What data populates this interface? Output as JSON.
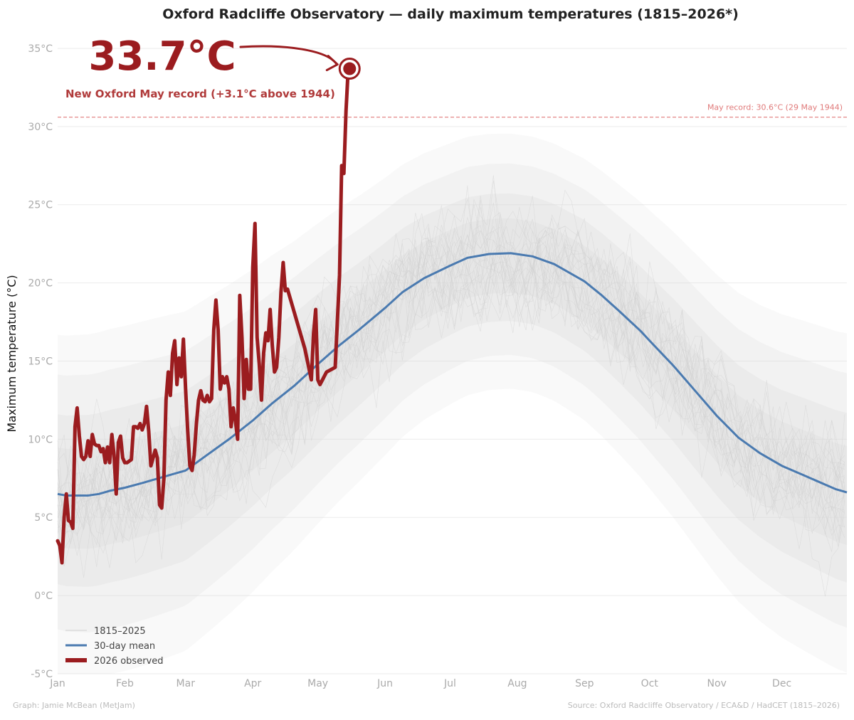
{
  "chart_data": {
    "type": "line",
    "title": "Oxford Radcliffe Observatory — daily maximum temperatures (1815–2026*)",
    "ylabel": "Maximum temperature (°C)",
    "xlabel": "",
    "ylim": [
      -5,
      35
    ],
    "xlim_day_of_year": [
      1,
      365
    ],
    "grid": "horizontal",
    "y_ticks": [
      {
        "value": -5,
        "label": "-5°C"
      },
      {
        "value": 0,
        "label": "0°C"
      },
      {
        "value": 5,
        "label": "5°C"
      },
      {
        "value": 10,
        "label": "10°C"
      },
      {
        "value": 15,
        "label": "15°C"
      },
      {
        "value": 20,
        "label": "20°C"
      },
      {
        "value": 25,
        "label": "25°C"
      },
      {
        "value": 30,
        "label": "30°C"
      },
      {
        "value": 35,
        "label": "35°C"
      }
    ],
    "x_ticks": [
      {
        "day": 1,
        "label": "Jan"
      },
      {
        "day": 32,
        "label": "Feb"
      },
      {
        "day": 60,
        "label": "Mar"
      },
      {
        "day": 91,
        "label": "Apr"
      },
      {
        "day": 121,
        "label": "May"
      },
      {
        "day": 152,
        "label": "Jun"
      },
      {
        "day": 182,
        "label": "Jul"
      },
      {
        "day": 213,
        "label": "Aug"
      },
      {
        "day": 244,
        "label": "Sep"
      },
      {
        "day": 274,
        "label": "Oct"
      },
      {
        "day": 305,
        "label": "Nov"
      },
      {
        "day": 335,
        "label": "Dec"
      }
    ],
    "legend": {
      "placement": "bottom-left",
      "entries": [
        {
          "label": "1815–2025",
          "color": "#d0d0d0",
          "style": "thin"
        },
        {
          "label": "30-day mean",
          "color": "#4a7ab0",
          "style": "medium"
        },
        {
          "label": "2026 observed",
          "color": "#9b1c1f",
          "style": "thick"
        }
      ]
    },
    "series": [
      {
        "name": "30-day mean",
        "color": "#4a7ab0",
        "points": [
          [
            1,
            6.5
          ],
          [
            5,
            6.4
          ],
          [
            10,
            6.4
          ],
          [
            15,
            6.4
          ],
          [
            20,
            6.5
          ],
          [
            25,
            6.7
          ],
          [
            32,
            6.9
          ],
          [
            40,
            7.2
          ],
          [
            50,
            7.6
          ],
          [
            60,
            8.0
          ],
          [
            70,
            9.0
          ],
          [
            80,
            10.0
          ],
          [
            91,
            11.2
          ],
          [
            100,
            12.3
          ],
          [
            110,
            13.4
          ],
          [
            121,
            14.8
          ],
          [
            130,
            15.9
          ],
          [
            140,
            17.0
          ],
          [
            152,
            18.4
          ],
          [
            160,
            19.4
          ],
          [
            170,
            20.3
          ],
          [
            182,
            21.1
          ],
          [
            190,
            21.6
          ],
          [
            200,
            21.85
          ],
          [
            210,
            21.9
          ],
          [
            220,
            21.7
          ],
          [
            230,
            21.2
          ],
          [
            244,
            20.1
          ],
          [
            252,
            19.2
          ],
          [
            260,
            18.2
          ],
          [
            270,
            16.9
          ],
          [
            274,
            16.3
          ],
          [
            285,
            14.7
          ],
          [
            295,
            13.1
          ],
          [
            305,
            11.5
          ],
          [
            315,
            10.1
          ],
          [
            325,
            9.1
          ],
          [
            335,
            8.3
          ],
          [
            345,
            7.7
          ],
          [
            355,
            7.1
          ],
          [
            360,
            6.8
          ],
          [
            365,
            6.6
          ]
        ]
      },
      {
        "name": "2026 observed",
        "color": "#9b1c1f",
        "points": [
          [
            1,
            3.5
          ],
          [
            2,
            3.2
          ],
          [
            3,
            2.1
          ],
          [
            4,
            5.0
          ],
          [
            5,
            6.5
          ],
          [
            6,
            4.8
          ],
          [
            7,
            4.7
          ],
          [
            8,
            4.3
          ],
          [
            9,
            10.8
          ],
          [
            10,
            12.0
          ],
          [
            11,
            10.2
          ],
          [
            12,
            8.9
          ],
          [
            13,
            8.7
          ],
          [
            14,
            8.9
          ],
          [
            15,
            9.9
          ],
          [
            16,
            8.9
          ],
          [
            17,
            10.3
          ],
          [
            18,
            9.7
          ],
          [
            19,
            9.6
          ],
          [
            20,
            9.6
          ],
          [
            21,
            9.2
          ],
          [
            22,
            9.4
          ],
          [
            23,
            8.5
          ],
          [
            24,
            9.5
          ],
          [
            25,
            8.5
          ],
          [
            26,
            10.3
          ],
          [
            27,
            9.0
          ],
          [
            28,
            6.5
          ],
          [
            29,
            9.8
          ],
          [
            30,
            10.2
          ],
          [
            31,
            8.8
          ],
          [
            32,
            8.5
          ],
          [
            33,
            8.5
          ],
          [
            34,
            8.6
          ],
          [
            35,
            8.7
          ],
          [
            36,
            10.8
          ],
          [
            37,
            10.8
          ],
          [
            38,
            10.7
          ],
          [
            39,
            11.0
          ],
          [
            40,
            10.6
          ],
          [
            41,
            11.0
          ],
          [
            42,
            12.1
          ],
          [
            43,
            10.5
          ],
          [
            44,
            8.3
          ],
          [
            45,
            8.8
          ],
          [
            46,
            9.3
          ],
          [
            47,
            8.8
          ],
          [
            48,
            5.8
          ],
          [
            49,
            5.6
          ],
          [
            50,
            7.5
          ],
          [
            51,
            12.5
          ],
          [
            52,
            14.3
          ],
          [
            53,
            12.8
          ],
          [
            54,
            15.5
          ],
          [
            55,
            16.3
          ],
          [
            56,
            13.5
          ],
          [
            57,
            15.2
          ],
          [
            58,
            14.0
          ],
          [
            59,
            16.4
          ],
          [
            60,
            13.2
          ],
          [
            61,
            10.5
          ],
          [
            62,
            8.3
          ],
          [
            63,
            8.0
          ],
          [
            64,
            9.0
          ],
          [
            65,
            11.0
          ],
          [
            66,
            12.5
          ],
          [
            67,
            13.1
          ],
          [
            68,
            12.5
          ],
          [
            69,
            12.4
          ],
          [
            70,
            12.8
          ],
          [
            71,
            12.4
          ],
          [
            72,
            12.6
          ],
          [
            73,
            17.0
          ],
          [
            74,
            18.9
          ],
          [
            75,
            17.0
          ],
          [
            76,
            13.2
          ],
          [
            77,
            14.0
          ],
          [
            78,
            13.6
          ],
          [
            79,
            14.0
          ],
          [
            80,
            13.2
          ],
          [
            81,
            10.8
          ],
          [
            82,
            12.0
          ],
          [
            83,
            11.2
          ],
          [
            84,
            10.0
          ],
          [
            85,
            19.2
          ],
          [
            86,
            16.5
          ],
          [
            87,
            12.6
          ],
          [
            88,
            15.1
          ],
          [
            89,
            13.2
          ],
          [
            90,
            13.2
          ],
          [
            91,
            21.0
          ],
          [
            92,
            23.8
          ],
          [
            93,
            16.5
          ],
          [
            94,
            14.8
          ],
          [
            95,
            12.5
          ],
          [
            96,
            15.5
          ],
          [
            97,
            16.8
          ],
          [
            98,
            16.3
          ],
          [
            99,
            18.3
          ],
          [
            100,
            16.0
          ],
          [
            101,
            14.3
          ],
          [
            102,
            14.6
          ],
          [
            103,
            16.5
          ],
          [
            104,
            19.4
          ],
          [
            105,
            21.3
          ],
          [
            106,
            19.5
          ],
          [
            107,
            19.6
          ],
          [
            115,
            15.8
          ],
          [
            118,
            13.8
          ],
          [
            119,
            16.7
          ],
          [
            120,
            18.3
          ],
          [
            121,
            13.8
          ],
          [
            122,
            13.5
          ],
          [
            125,
            14.3
          ],
          [
            129,
            14.6
          ],
          [
            131,
            20.5
          ],
          [
            132,
            27.5
          ],
          [
            133,
            27.0
          ],
          [
            134,
            31.0
          ],
          [
            135,
            33.7
          ]
        ]
      }
    ],
    "historical_band": {
      "label": "1815–2025",
      "color": "#d0d0d0"
    },
    "reference_line": {
      "value": 30.6,
      "label": "May record: 30.6°C (29 May 1944)",
      "color": "#e07a7a"
    },
    "highlight": {
      "day": 135,
      "value": 33.7,
      "big_label": "33.7°C",
      "caption": "New Oxford May record (+3.1°C above 1944)",
      "color": "#9b1c1f"
    },
    "credits": {
      "left": "Graph: Jamie McBean (MetJam)",
      "right": "Source: Oxford Radcliffe Observatory / ECA&D / HadCET (1815–2026)"
    }
  }
}
